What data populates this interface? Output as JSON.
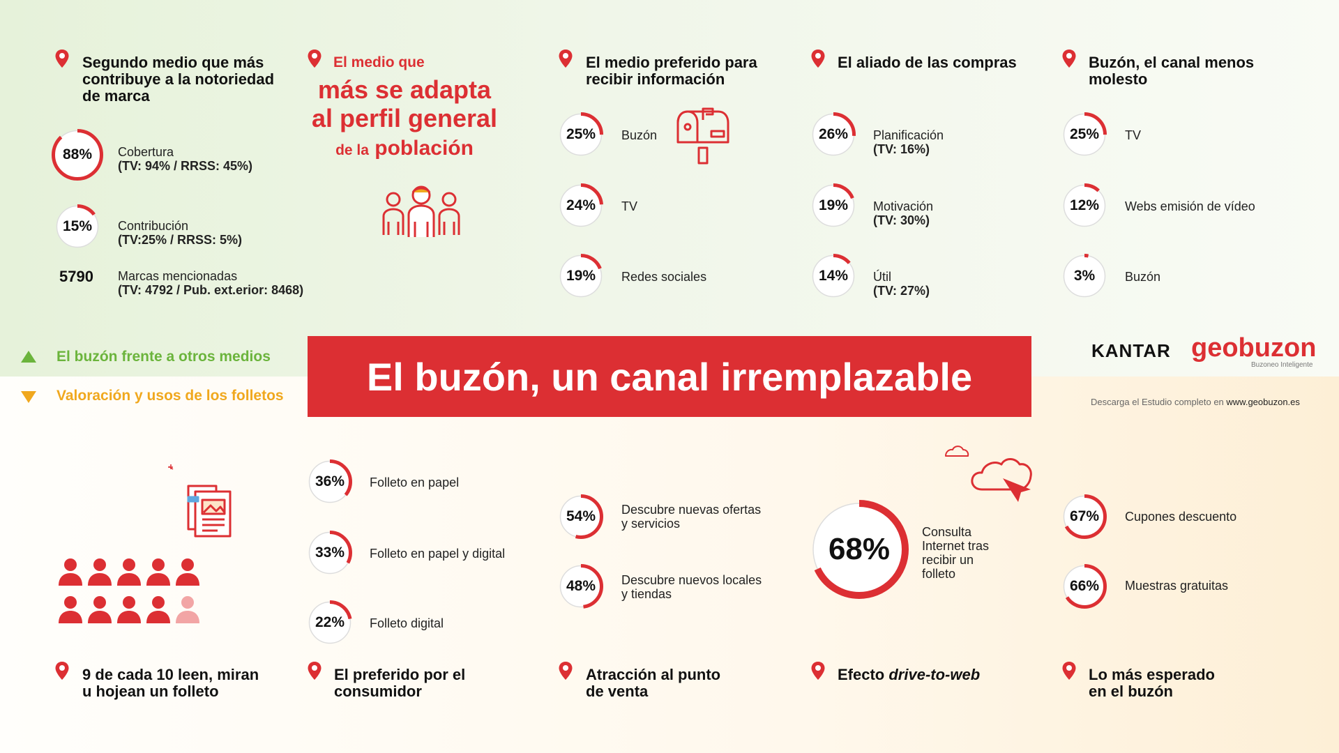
{
  "colors": {
    "accent": "#dc2f33",
    "green": "#6bb43c",
    "amber": "#f0a81e",
    "ring_track": "#dddddd"
  },
  "banner": {
    "title": "El buzón, un canal irremplazable"
  },
  "tabs": {
    "top": "El buzón frente a otros medios",
    "bottom": "Valoración y usos de los folletos"
  },
  "brand": {
    "kantar": "KANTAR",
    "geobuzon": "geobuzon",
    "geobuzon_tagline": "Buzoneo Inteligente",
    "download_prefix": "Descarga el Estudio completo en ",
    "download_url": "www.geobuzon.es"
  },
  "top": {
    "col1": {
      "title_l1": "Segundo medio que más",
      "title_l2": "contribuye a la notoriedad",
      "title_l3": "de marca",
      "stats": [
        {
          "value": 88,
          "label": "88%",
          "line1": "Cobertura",
          "line2": "(TV: 94% / RRSS: 45%)"
        },
        {
          "value": 15,
          "label": "15%",
          "line1": "Contribución",
          "line2": "(TV:25% / RRSS: 5%)"
        }
      ],
      "brands_count": "5790",
      "brands_line1": "Marcas mencionadas",
      "brands_line2": "(TV: 4792 / Pub. ext.erior: 8468)"
    },
    "col2": {
      "l1": "El medio que",
      "l2": "más se adapta",
      "l3": "al perfil general",
      "l4a": "de la",
      "l4b": "población",
      "icon": "people-group-icon"
    },
    "col3": {
      "title_l1": "El medio preferido para",
      "title_l2": "recibir información",
      "icon": "mailbox-icon",
      "stats": [
        {
          "value": 25,
          "label": "25%",
          "line1": "Buzón"
        },
        {
          "value": 24,
          "label": "24%",
          "line1": "TV"
        },
        {
          "value": 19,
          "label": "19%",
          "line1": "Redes sociales"
        }
      ]
    },
    "col4": {
      "title_l1": "El aliado de las compras",
      "stats": [
        {
          "value": 26,
          "label": "26%",
          "line1": "Planificación",
          "line2": "(TV: 16%)"
        },
        {
          "value": 19,
          "label": "19%",
          "line1": "Motivación",
          "line2": "(TV: 30%)"
        },
        {
          "value": 14,
          "label": "14%",
          "line1": "Útil",
          "line2": "(TV: 27%)"
        }
      ]
    },
    "col5": {
      "title_l1": "Buzón, el canal menos",
      "title_l2": "molesto",
      "stats": [
        {
          "value": 25,
          "label": "25%",
          "line1": "TV"
        },
        {
          "value": 12,
          "label": "12%",
          "line1": "Webs emisión de vídeo"
        },
        {
          "value": 3,
          "label": "3%",
          "line1": "Buzón"
        }
      ]
    }
  },
  "bottom": {
    "col1": {
      "title_l1": "9 de cada 10 leen, miran",
      "title_l2": "u hojean un folleto",
      "people_total": 10,
      "people_highlight": 9,
      "icon": "brochure-icon"
    },
    "col2": {
      "title_l1": "El preferido por el",
      "title_l2": "consumidor",
      "stats": [
        {
          "value": 36,
          "label": "36%",
          "line1": "Folleto en papel"
        },
        {
          "value": 33,
          "label": "33%",
          "line1": "Folleto en papel y digital"
        },
        {
          "value": 22,
          "label": "22%",
          "line1": "Folleto digital"
        }
      ]
    },
    "col3": {
      "title_l1": "Atracción al punto",
      "title_l2": "de venta",
      "stats": [
        {
          "value": 54,
          "label": "54%",
          "line1": "Descubre nuevas ofertas",
          "line2": "y servicios"
        },
        {
          "value": 48,
          "label": "48%",
          "line1": "Descubre nuevos locales",
          "line2": "y tiendas"
        }
      ]
    },
    "col4": {
      "title_a": "Efecto ",
      "title_b": "drive-to-web",
      "big_value": 68,
      "big_label": "68%",
      "l1": "Consulta",
      "l2": "Internet tras",
      "l3": "recibir un",
      "l4": "folleto",
      "icon": "cloud-click-icon"
    },
    "col5": {
      "title_l1": "Lo más esperado",
      "title_l2": "en el buzón",
      "stats": [
        {
          "value": 67,
          "label": "67%",
          "line1": "Cupones descuento"
        },
        {
          "value": 66,
          "label": "66%",
          "line1": "Muestras gratuitas"
        }
      ]
    }
  }
}
